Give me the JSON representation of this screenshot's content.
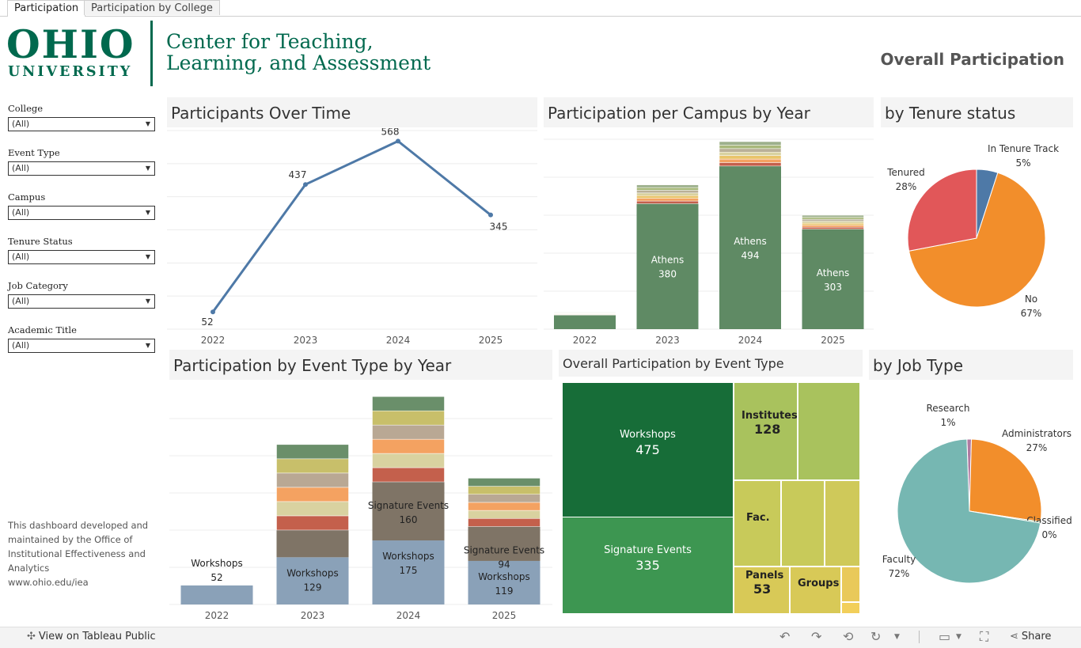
{
  "tabs": [
    "Participation",
    "Participation by College"
  ],
  "logo": {
    "line1": "OHIO",
    "line2": "UNIVERSITY"
  },
  "center_title": {
    "line1": "Center for Teaching,",
    "line2": "Learning, and Assessment"
  },
  "page_title": "Overall Participation",
  "filters": [
    {
      "label": "College",
      "value": "(All)"
    },
    {
      "label": "Event Type",
      "value": "(All)"
    },
    {
      "label": "Campus",
      "value": "(All)"
    },
    {
      "label": "Tenure Status",
      "value": "(All)"
    },
    {
      "label": "Job Category",
      "value": "(All)"
    },
    {
      "label": "Academic Title",
      "value": "(All)"
    }
  ],
  "note": {
    "lines": [
      "This dashboard developed and",
      "maintained by the Office of",
      "Institutional Effectiveness and",
      "Analytics",
      "www.ohio.edu/iea"
    ]
  },
  "footer": {
    "view_label": "View on Tableau Public",
    "share_label": "Share"
  },
  "chart_data": [
    {
      "id": "participants_over_time",
      "type": "line",
      "title": "Participants Over Time",
      "categories": [
        "2022",
        "2023",
        "2024",
        "2025"
      ],
      "values": [
        52,
        437,
        568,
        345
      ],
      "ylim": [
        0,
        600
      ],
      "color": "#4e79a7"
    },
    {
      "id": "campus_by_year",
      "type": "bar",
      "title": "Participation per Campus by Year",
      "categories": [
        "2022",
        "2023",
        "2024",
        "2025"
      ],
      "labeled_segment": "Athens",
      "athens": [
        null,
        380,
        494,
        303
      ],
      "totals": [
        52,
        437,
        568,
        345
      ],
      "other_colors": [
        "#c4604c",
        "#f4a261",
        "#e9c46a",
        "#d9d2a0",
        "#b9b098",
        "#a8b87a",
        "#9db08c"
      ],
      "athens_color": "#5f8a64",
      "ylim": [
        0,
        580
      ]
    },
    {
      "id": "tenure_status",
      "type": "pie",
      "title": "by Tenure status",
      "slices": [
        {
          "label": "In Tenure Track",
          "pct": "5%",
          "value": 5,
          "color": "#4e79a7"
        },
        {
          "label": "No",
          "pct": "67%",
          "value": 67,
          "color": "#f28e2b"
        },
        {
          "label": "Tenured",
          "pct": "28%",
          "value": 28,
          "color": "#e15759"
        }
      ]
    },
    {
      "id": "event_type_by_year",
      "type": "bar",
      "title": "Participation by Event Type by Year",
      "categories": [
        "2022",
        "2023",
        "2024",
        "2025"
      ],
      "workshops": [
        52,
        129,
        175,
        119
      ],
      "signature_events": [
        null,
        null,
        160,
        94
      ],
      "workshops_label": "Workshops",
      "signature_label": "Signature Events",
      "ylim": [
        0,
        600
      ]
    },
    {
      "id": "event_type_treemap",
      "type": "treemap",
      "title": "Overall Participation by Event Type",
      "items": [
        {
          "label": "Workshops",
          "value": "475",
          "color": "#176d38"
        },
        {
          "label": "Signature Events",
          "value": "335",
          "color": "#3d9651"
        },
        {
          "label": "Institutes",
          "value": "128",
          "color": "#a9c25d"
        },
        {
          "label": "Fac.",
          "value": "",
          "color": "#c8ca5a"
        },
        {
          "label": "Panels",
          "value": "53",
          "color": "#d8c957"
        },
        {
          "label": "Groups",
          "value": "",
          "color": "#d8c957"
        }
      ]
    },
    {
      "id": "job_type",
      "type": "pie",
      "title": "by Job Type",
      "slices": [
        {
          "label": "Research",
          "pct": "1%",
          "value": 1,
          "color": "#b07aa1"
        },
        {
          "label": "Administrators",
          "pct": "27%",
          "value": 27,
          "color": "#f28e2b"
        },
        {
          "label": "Classified",
          "pct": "0%",
          "value": 0.3,
          "color": "#59a14f"
        },
        {
          "label": "Faculty",
          "pct": "72%",
          "value": 72,
          "color": "#76b7b2"
        }
      ]
    }
  ]
}
